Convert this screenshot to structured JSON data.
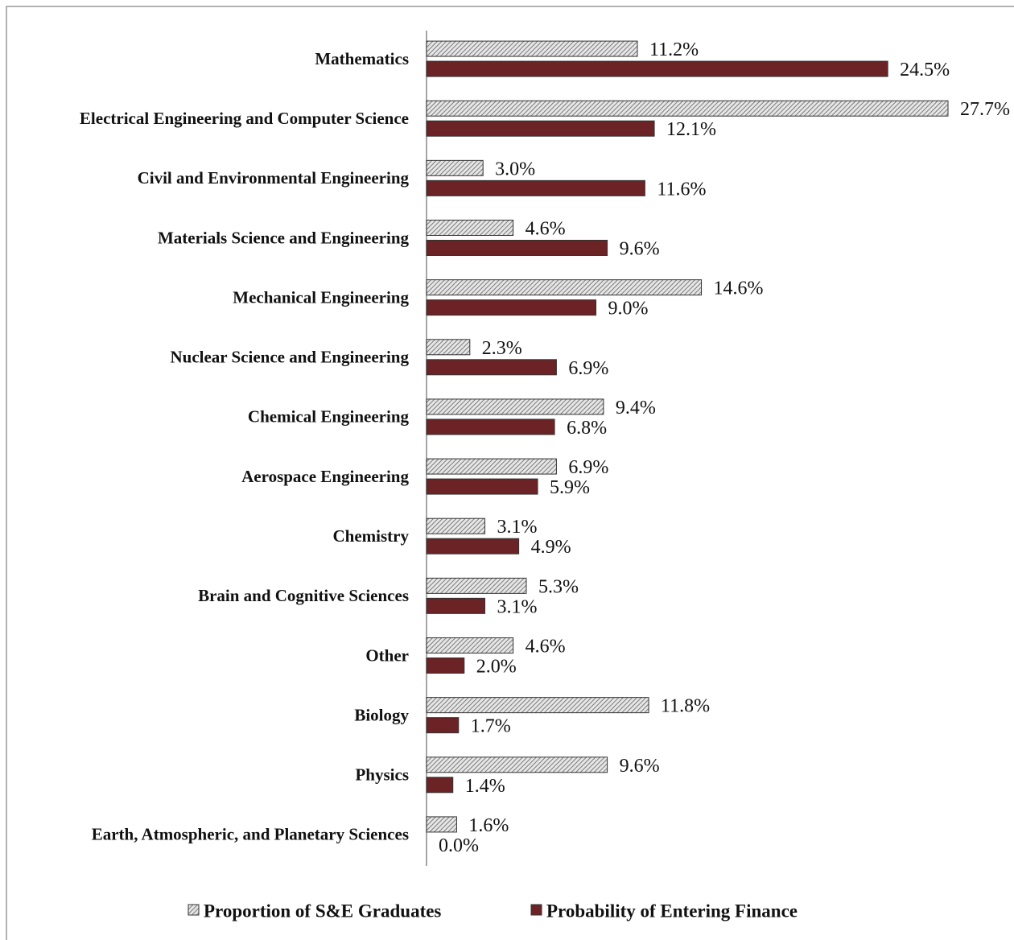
{
  "chart_data": {
    "type": "hbar",
    "categories": [
      "Mathematics",
      "Electrical Engineering and Computer Science",
      "Civil and Environmental Engineering",
      "Materials Science and Engineering",
      "Mechanical Engineering",
      "Nuclear Science and Engineering",
      "Chemical Engineering",
      "Aerospace Engineering",
      "Chemistry",
      "Brain and Cognitive Sciences",
      "Other",
      "Biology",
      "Physics",
      "Earth, Atmospheric, and Planetary Sciences"
    ],
    "series": [
      {
        "name": "Proportion of S&E Graduates",
        "color": "#9a9a9a",
        "pattern": "hatch",
        "values": [
          11.2,
          27.7,
          3.0,
          4.6,
          14.6,
          2.3,
          9.4,
          6.9,
          3.1,
          5.3,
          4.6,
          11.8,
          9.6,
          1.6
        ],
        "value_labels": [
          "11.2%",
          "27.7%",
          "3.0%",
          "4.6%",
          "14.6%",
          "2.3%",
          "9.4%",
          "6.9%",
          "3.1%",
          "5.3%",
          "4.6%",
          "11.8%",
          "9.6%",
          "1.6%"
        ]
      },
      {
        "name": "Probability of Entering Finance",
        "color": "#6b2326",
        "pattern": "solid",
        "values": [
          24.5,
          12.1,
          11.6,
          9.6,
          9.0,
          6.9,
          6.8,
          5.9,
          4.9,
          3.1,
          2.0,
          1.7,
          1.4,
          0.0
        ],
        "value_labels": [
          "24.5%",
          "12.1%",
          "11.6%",
          "9.6%",
          "9.0%",
          "6.9%",
          "6.8%",
          "5.9%",
          "4.9%",
          "3.1%",
          "2.0%",
          "1.7%",
          "1.4%",
          "0.0%"
        ]
      }
    ],
    "legend": "bottom"
  }
}
